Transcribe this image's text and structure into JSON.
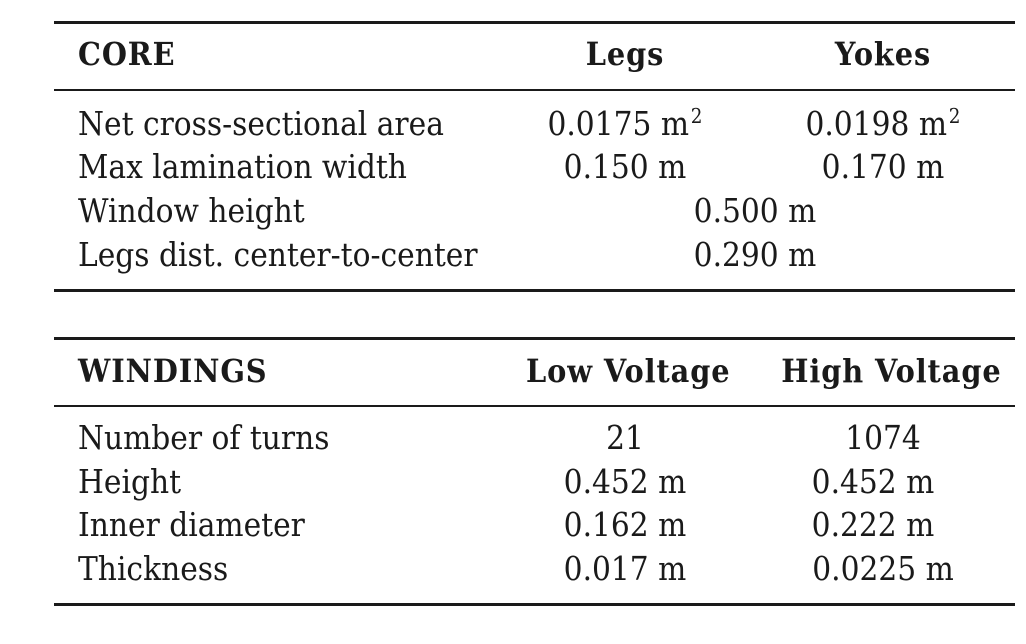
{
  "core": {
    "header": {
      "label": "CORE",
      "col1": "Legs",
      "col2": "Yokes"
    },
    "rows": [
      {
        "label": "Net cross-sectional area",
        "col1": "0.0175 m",
        "col1_sup": "2",
        "col2": "0.0198 m",
        "col2_sup": "2"
      },
      {
        "label": "Max lamination width",
        "col1": "0.150 m",
        "col2": "0.170 m"
      },
      {
        "label": "Window height",
        "span": "0.500 m"
      },
      {
        "label": "Legs dist. center-to-center",
        "span": "0.290 m"
      }
    ]
  },
  "windings": {
    "header": {
      "label": "WINDINGS",
      "col1": "Low Voltage",
      "col2": "High Voltage"
    },
    "rows": [
      {
        "label": "Number of turns",
        "col1": "21",
        "col2": "1074"
      },
      {
        "label": "Height",
        "col1": "0.452 m",
        "col2": "0.452 m"
      },
      {
        "label": "Inner diameter",
        "col1": "0.162 m",
        "col2": "0.222 m"
      },
      {
        "label": "Thickness",
        "col1": "0.017 m",
        "col2": "0.0225 m"
      }
    ]
  }
}
